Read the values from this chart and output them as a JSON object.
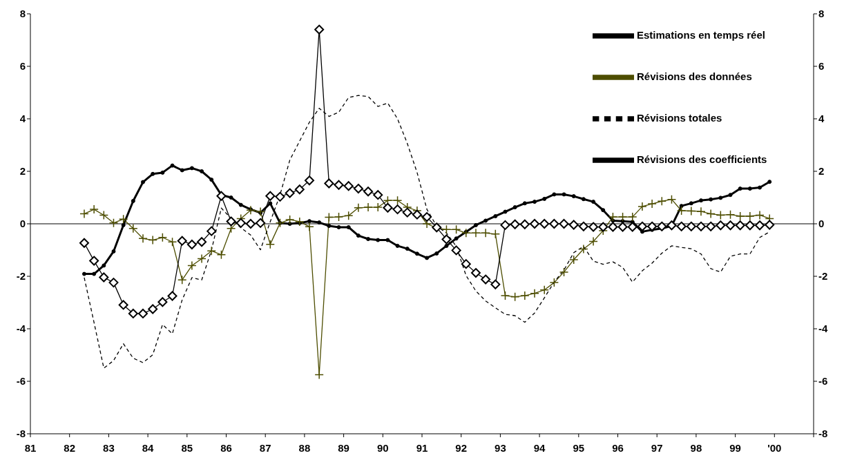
{
  "chart_data": {
    "type": "line",
    "x": [
      1982.375,
      1982.625,
      1982.875,
      1983.125,
      1983.375,
      1983.625,
      1983.875,
      1984.125,
      1984.375,
      1984.625,
      1984.875,
      1985.125,
      1985.375,
      1985.625,
      1985.875,
      1986.125,
      1986.375,
      1986.625,
      1986.875,
      1987.125,
      1987.375,
      1987.625,
      1987.875,
      1988.125,
      1988.375,
      1988.625,
      1988.875,
      1989.125,
      1989.375,
      1989.625,
      1989.875,
      1990.125,
      1990.375,
      1990.625,
      1990.875,
      1991.125,
      1991.375,
      1991.625,
      1991.875,
      1992.125,
      1992.375,
      1992.625,
      1992.875,
      1993.125,
      1993.375,
      1993.625,
      1993.875,
      1994.125,
      1994.375,
      1994.625,
      1994.875,
      1995.125,
      1995.375,
      1995.625,
      1995.875,
      1996.125,
      1996.375,
      1996.625,
      1996.875,
      1997.125,
      1997.375,
      1997.625,
      1997.875,
      1998.125,
      1998.375,
      1998.625,
      1998.875,
      1999.125,
      1999.375,
      1999.625,
      1999.875
    ],
    "series": [
      {
        "name": "Estimations en temps réel",
        "color": "#000000",
        "marker": "circle",
        "line_style": "solid",
        "values": [
          -1.91,
          -1.91,
          -1.59,
          -1.05,
          -0.05,
          0.87,
          1.59,
          1.9,
          1.95,
          2.22,
          2.04,
          2.12,
          2.0,
          1.68,
          1.1,
          1.0,
          0.72,
          0.55,
          0.42,
          0.78,
          0.03,
          0.0,
          0.03,
          0.1,
          0.05,
          -0.08,
          -0.13,
          -0.13,
          -0.45,
          -0.58,
          -0.62,
          -0.62,
          -0.84,
          -0.95,
          -1.14,
          -1.3,
          -1.13,
          -0.84,
          -0.56,
          -0.31,
          -0.05,
          0.12,
          0.29,
          0.46,
          0.63,
          0.78,
          0.84,
          0.95,
          1.12,
          1.12,
          1.05,
          0.94,
          0.84,
          0.52,
          0.12,
          0.1,
          0.07,
          -0.3,
          -0.23,
          -0.18,
          -0.08,
          0.68,
          0.78,
          0.89,
          0.93,
          0.99,
          1.1,
          1.34,
          1.34,
          1.38,
          1.6
        ]
      },
      {
        "name": "Révisions des données",
        "color": "#4d4d00",
        "marker": "cross",
        "line_style": "solid",
        "values": [
          0.38,
          0.55,
          0.33,
          0.03,
          0.18,
          -0.18,
          -0.56,
          -0.62,
          -0.52,
          -0.69,
          -2.14,
          -1.59,
          -1.33,
          -1.03,
          -1.18,
          -0.18,
          0.2,
          0.52,
          0.46,
          -0.78,
          0.03,
          0.16,
          0.08,
          -0.11,
          -5.75,
          0.25,
          0.26,
          0.31,
          0.61,
          0.63,
          0.63,
          0.89,
          0.89,
          0.63,
          0.5,
          0.0,
          -0.16,
          -0.22,
          -0.22,
          -0.35,
          -0.35,
          -0.35,
          -0.39,
          -2.74,
          -2.78,
          -2.74,
          -2.65,
          -2.52,
          -2.24,
          -1.84,
          -1.37,
          -0.96,
          -0.67,
          -0.26,
          0.26,
          0.26,
          0.26,
          0.66,
          0.76,
          0.86,
          0.93,
          0.5,
          0.49,
          0.47,
          0.38,
          0.33,
          0.35,
          0.29,
          0.29,
          0.33,
          0.2
        ]
      },
      {
        "name": "Révisions totales",
        "color": "#000000",
        "marker": "none",
        "line_style": "dashed",
        "values": [
          -2.05,
          -3.76,
          -5.5,
          -5.21,
          -4.57,
          -5.12,
          -5.29,
          -4.99,
          -3.84,
          -4.19,
          -2.9,
          -2.05,
          -2.14,
          -1.0,
          0.6,
          0.2,
          -0.15,
          -0.43,
          -0.99,
          0.08,
          1.1,
          2.43,
          3.15,
          3.87,
          4.4,
          4.09,
          4.25,
          4.81,
          4.89,
          4.85,
          4.47,
          4.6,
          4.0,
          3.06,
          1.95,
          0.55,
          -0.09,
          -0.35,
          -0.86,
          -1.97,
          -2.56,
          -2.94,
          -3.2,
          -3.45,
          -3.5,
          -3.75,
          -3.4,
          -2.82,
          -2.22,
          -1.76,
          -1.1,
          -0.86,
          -1.42,
          -1.54,
          -1.45,
          -1.66,
          -2.22,
          -1.79,
          -1.5,
          -1.12,
          -0.84,
          -0.9,
          -0.95,
          -1.15,
          -1.71,
          -1.84,
          -1.24,
          -1.15,
          -1.15,
          -0.52,
          -0.31
        ]
      },
      {
        "name": "Révisions des coefficients",
        "color": "#000000",
        "marker": "diamond",
        "line_style": "solid",
        "values": [
          -0.73,
          -1.41,
          -2.04,
          -2.24,
          -3.09,
          -3.42,
          -3.42,
          -3.25,
          -2.98,
          -2.75,
          -0.65,
          -0.79,
          -0.69,
          -0.28,
          1.06,
          0.09,
          0.03,
          0.0,
          0.03,
          1.06,
          1.03,
          1.17,
          1.31,
          1.65,
          7.4,
          1.54,
          1.48,
          1.44,
          1.34,
          1.23,
          1.1,
          0.61,
          0.55,
          0.43,
          0.35,
          0.26,
          -0.14,
          -0.59,
          -1.01,
          -1.53,
          -1.87,
          -2.12,
          -2.31,
          -0.05,
          -0.02,
          -0.02,
          0.0,
          0.0,
          0.0,
          0.0,
          -0.04,
          -0.1,
          -0.12,
          -0.12,
          -0.12,
          -0.12,
          -0.12,
          -0.1,
          -0.1,
          -0.1,
          -0.06,
          -0.1,
          -0.1,
          -0.1,
          -0.1,
          -0.06,
          -0.06,
          -0.06,
          -0.06,
          -0.06,
          -0.04
        ]
      }
    ],
    "xlim": [
      1981,
      2001
    ],
    "xticks": [
      {
        "value": 1981,
        "label": "81"
      },
      {
        "value": 1982,
        "label": "82"
      },
      {
        "value": 1983,
        "label": "83"
      },
      {
        "value": 1984,
        "label": "84"
      },
      {
        "value": 1985,
        "label": "85"
      },
      {
        "value": 1986,
        "label": "86"
      },
      {
        "value": 1987,
        "label": "87"
      },
      {
        "value": 1988,
        "label": "88"
      },
      {
        "value": 1989,
        "label": "89"
      },
      {
        "value": 1990,
        "label": "90"
      },
      {
        "value": 1991,
        "label": "91"
      },
      {
        "value": 1992,
        "label": "92"
      },
      {
        "value": 1993,
        "label": "93"
      },
      {
        "value": 1994,
        "label": "94"
      },
      {
        "value": 1995,
        "label": "95"
      },
      {
        "value": 1996,
        "label": "96"
      },
      {
        "value": 1997,
        "label": "97"
      },
      {
        "value": 1998,
        "label": "98"
      },
      {
        "value": 1999,
        "label": "99"
      },
      {
        "value": 2000,
        "label": "'00"
      },
      {
        "value": 2001,
        "label": null
      }
    ],
    "ylim": [
      -8,
      8
    ],
    "yticks": [
      -8,
      -6,
      -4,
      -2,
      0,
      2,
      4,
      6,
      8
    ],
    "y2lim": [
      -8,
      8
    ],
    "y2ticks": [
      -8,
      -6,
      -4,
      -2,
      0,
      2,
      4,
      6,
      8
    ],
    "ref_lines": [
      {
        "axis": "y",
        "value": 0,
        "color": "#000000"
      }
    ],
    "grid": false,
    "legend": "top right"
  }
}
